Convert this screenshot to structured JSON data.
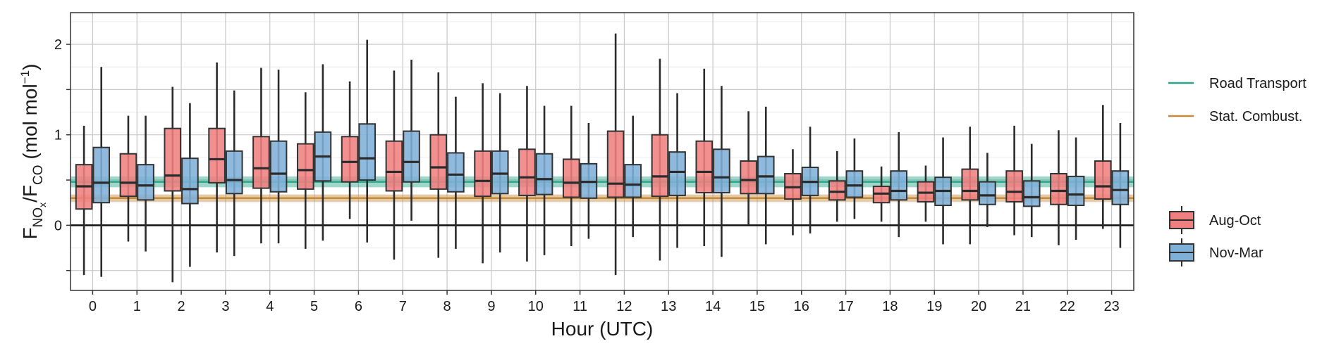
{
  "chart_data": {
    "type": "boxplot",
    "xlabel": "Hour (UTC)",
    "ylabel": {
      "main": "F",
      "sub1": "NO",
      "sub1_sub": "x",
      "slash": "/F",
      "sub2": "CO",
      "unit_open": " (mol mol",
      "unit_sup": "−1",
      "unit_close": ")"
    },
    "ylim": [
      -0.72,
      2.35
    ],
    "yticks": [
      -0.5,
      0,
      0.5,
      1,
      1.5,
      2
    ],
    "ytick_labels": [
      "",
      "0",
      "",
      "1",
      "",
      "2"
    ],
    "grid": true,
    "categories": [
      "0",
      "1",
      "2",
      "3",
      "4",
      "5",
      "6",
      "7",
      "8",
      "9",
      "10",
      "11",
      "12",
      "13",
      "14",
      "15",
      "16",
      "17",
      "18",
      "19",
      "20",
      "21",
      "22",
      "23"
    ],
    "series": [
      {
        "name": "Aug-Oct",
        "color": "#F08080",
        "boxes": [
          {
            "min": -0.55,
            "q1": 0.18,
            "median": 0.43,
            "q3": 0.67,
            "max": 1.1
          },
          {
            "min": -0.18,
            "q1": 0.32,
            "median": 0.47,
            "q3": 0.79,
            "max": 1.21
          },
          {
            "min": -0.63,
            "q1": 0.38,
            "median": 0.55,
            "q3": 1.07,
            "max": 1.53
          },
          {
            "min": -0.3,
            "q1": 0.47,
            "median": 0.73,
            "q3": 1.07,
            "max": 1.8
          },
          {
            "min": -0.2,
            "q1": 0.41,
            "median": 0.63,
            "q3": 0.98,
            "max": 1.74
          },
          {
            "min": -0.26,
            "q1": 0.4,
            "median": 0.61,
            "q3": 0.9,
            "max": 1.47
          },
          {
            "min": 0.07,
            "q1": 0.48,
            "median": 0.7,
            "q3": 0.98,
            "max": 1.59
          },
          {
            "min": -0.38,
            "q1": 0.38,
            "median": 0.59,
            "q3": 0.93,
            "max": 1.71
          },
          {
            "min": -0.36,
            "q1": 0.4,
            "median": 0.64,
            "q3": 1.0,
            "max": 1.69
          },
          {
            "min": -0.42,
            "q1": 0.32,
            "median": 0.49,
            "q3": 0.82,
            "max": 1.57
          },
          {
            "min": -0.4,
            "q1": 0.33,
            "median": 0.53,
            "q3": 0.84,
            "max": 1.54
          },
          {
            "min": -0.23,
            "q1": 0.31,
            "median": 0.47,
            "q3": 0.73,
            "max": 1.32
          },
          {
            "min": -0.55,
            "q1": 0.31,
            "median": 0.46,
            "q3": 1.04,
            "max": 2.12
          },
          {
            "min": -0.39,
            "q1": 0.32,
            "median": 0.54,
            "q3": 1.0,
            "max": 1.84
          },
          {
            "min": -0.23,
            "q1": 0.36,
            "median": 0.59,
            "q3": 0.93,
            "max": 1.73
          },
          {
            "min": 0.01,
            "q1": 0.35,
            "median": 0.5,
            "q3": 0.71,
            "max": 1.26
          },
          {
            "min": -0.11,
            "q1": 0.29,
            "median": 0.42,
            "q3": 0.57,
            "max": 0.84
          },
          {
            "min": 0.04,
            "q1": 0.28,
            "median": 0.37,
            "q3": 0.49,
            "max": 0.82
          },
          {
            "min": 0.04,
            "q1": 0.25,
            "median": 0.35,
            "q3": 0.43,
            "max": 0.65
          },
          {
            "min": 0.04,
            "q1": 0.26,
            "median": 0.36,
            "q3": 0.48,
            "max": 0.66
          },
          {
            "min": -0.21,
            "q1": 0.28,
            "median": 0.38,
            "q3": 0.62,
            "max": 1.09
          },
          {
            "min": -0.11,
            "q1": 0.26,
            "median": 0.37,
            "q3": 0.6,
            "max": 1.1
          },
          {
            "min": -0.22,
            "q1": 0.23,
            "median": 0.38,
            "q3": 0.57,
            "max": 1.05
          },
          {
            "min": -0.04,
            "q1": 0.29,
            "median": 0.43,
            "q3": 0.71,
            "max": 1.33
          }
        ]
      },
      {
        "name": "Nov-Mar",
        "color": "#7FB0D8",
        "boxes": [
          {
            "min": -0.57,
            "q1": 0.25,
            "median": 0.47,
            "q3": 0.86,
            "max": 1.75
          },
          {
            "min": -0.29,
            "q1": 0.28,
            "median": 0.44,
            "q3": 0.67,
            "max": 1.21
          },
          {
            "min": -0.46,
            "q1": 0.24,
            "median": 0.4,
            "q3": 0.74,
            "max": 1.35
          },
          {
            "min": -0.34,
            "q1": 0.35,
            "median": 0.5,
            "q3": 0.82,
            "max": 1.49
          },
          {
            "min": -0.2,
            "q1": 0.37,
            "median": 0.57,
            "q3": 0.93,
            "max": 1.72
          },
          {
            "min": -0.17,
            "q1": 0.49,
            "median": 0.76,
            "q3": 1.03,
            "max": 1.78
          },
          {
            "min": -0.19,
            "q1": 0.5,
            "median": 0.74,
            "q3": 1.12,
            "max": 2.05
          },
          {
            "min": 0.05,
            "q1": 0.48,
            "median": 0.7,
            "q3": 1.04,
            "max": 1.83
          },
          {
            "min": -0.26,
            "q1": 0.37,
            "median": 0.56,
            "q3": 0.8,
            "max": 1.42
          },
          {
            "min": -0.3,
            "q1": 0.35,
            "median": 0.57,
            "q3": 0.82,
            "max": 1.46
          },
          {
            "min": -0.33,
            "q1": 0.34,
            "median": 0.51,
            "q3": 0.79,
            "max": 1.32
          },
          {
            "min": -0.15,
            "q1": 0.3,
            "median": 0.48,
            "q3": 0.68,
            "max": 1.13
          },
          {
            "min": -0.13,
            "q1": 0.31,
            "median": 0.45,
            "q3": 0.67,
            "max": 1.21
          },
          {
            "min": -0.25,
            "q1": 0.33,
            "median": 0.59,
            "q3": 0.81,
            "max": 1.46
          },
          {
            "min": -0.35,
            "q1": 0.36,
            "median": 0.53,
            "q3": 0.84,
            "max": 1.54
          },
          {
            "min": -0.21,
            "q1": 0.35,
            "median": 0.54,
            "q3": 0.76,
            "max": 1.31
          },
          {
            "min": -0.09,
            "q1": 0.33,
            "median": 0.48,
            "q3": 0.64,
            "max": 1.09
          },
          {
            "min": 0.07,
            "q1": 0.31,
            "median": 0.44,
            "q3": 0.6,
            "max": 0.96
          },
          {
            "min": -0.13,
            "q1": 0.28,
            "median": 0.38,
            "q3": 0.6,
            "max": 1.03
          },
          {
            "min": -0.21,
            "q1": 0.22,
            "median": 0.38,
            "q3": 0.53,
            "max": 0.97
          },
          {
            "min": -0.02,
            "q1": 0.23,
            "median": 0.33,
            "q3": 0.48,
            "max": 0.8
          },
          {
            "min": -0.13,
            "q1": 0.21,
            "median": 0.31,
            "q3": 0.49,
            "max": 0.9
          },
          {
            "min": -0.16,
            "q1": 0.22,
            "median": 0.34,
            "q3": 0.54,
            "max": 0.97
          },
          {
            "min": -0.25,
            "q1": 0.23,
            "median": 0.39,
            "q3": 0.6,
            "max": 1.13
          }
        ]
      }
    ],
    "reference_bands": [
      {
        "name": "Road Transport",
        "color": "#2AA58A",
        "value": 0.48,
        "low": 0.42,
        "high": 0.54
      },
      {
        "name": "Stat. Combust.",
        "color": "#C58A3A",
        "value": 0.3,
        "low": 0.26,
        "high": 0.34
      }
    ],
    "zero_line": 0,
    "legend_placement": "right"
  }
}
